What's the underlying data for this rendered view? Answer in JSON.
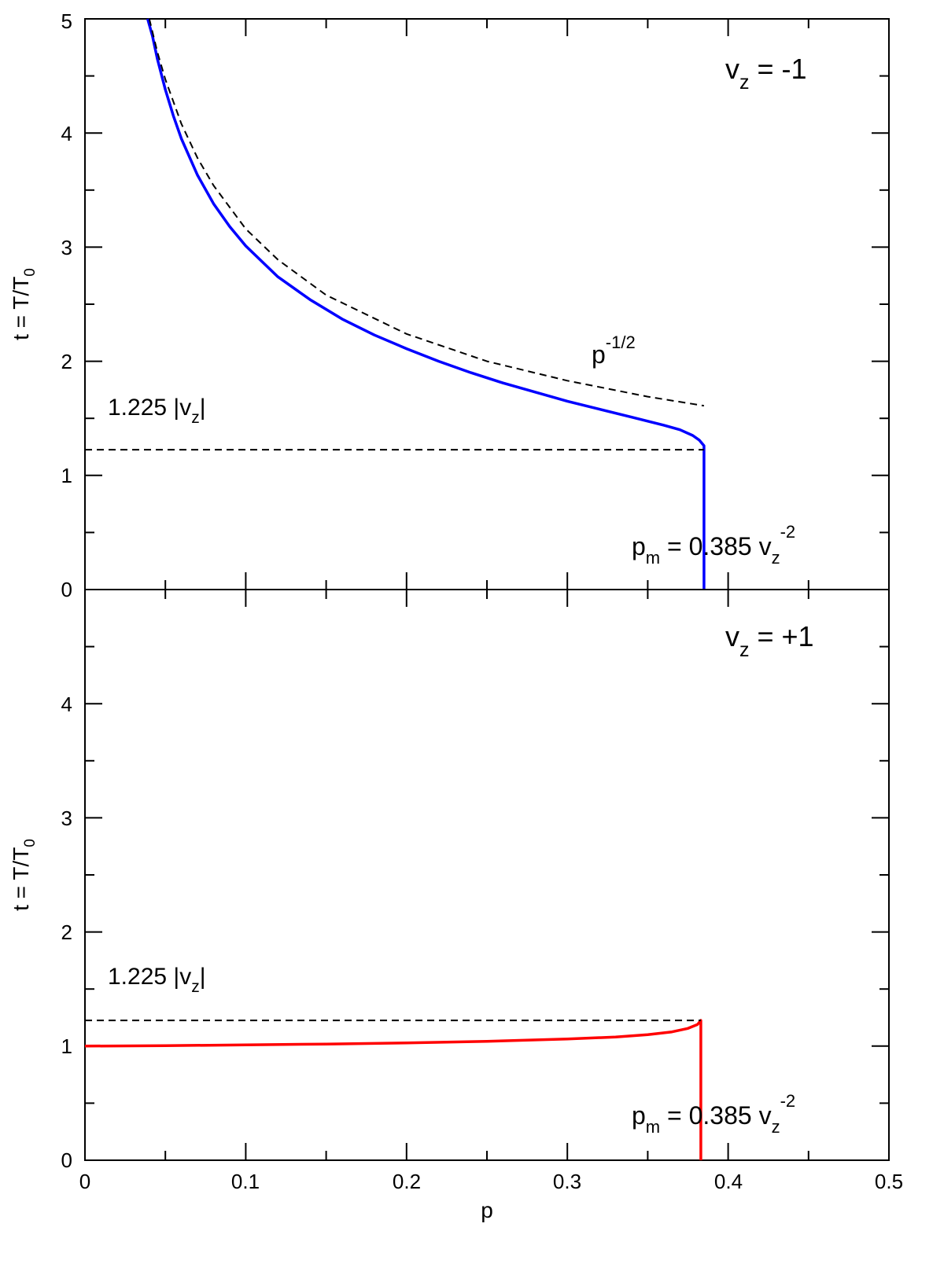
{
  "chart_data": [
    {
      "type": "line",
      "panel": "top",
      "xlim": [
        0,
        0.5
      ],
      "ylim": [
        0,
        5
      ],
      "x_ticks": [
        "0",
        "0.1",
        "0.2",
        "0.3",
        "0.4",
        "0.5"
      ],
      "y_ticks": [
        "0",
        "1",
        "2",
        "3",
        "4",
        "5"
      ],
      "xlabel": "",
      "ylabel": {
        "main": "t = T/T",
        "sub": "0"
      },
      "label": {
        "base": "v",
        "sub": "z",
        "rest": " = -1"
      },
      "series": [
        {
          "color": "#0000ff",
          "style": "solid",
          "points": [
            [
              0.039,
              5.0
            ],
            [
              0.042,
              4.85
            ],
            [
              0.045,
              4.65
            ],
            [
              0.05,
              4.38
            ],
            [
              0.055,
              4.15
            ],
            [
              0.06,
              3.95
            ],
            [
              0.07,
              3.63
            ],
            [
              0.08,
              3.38
            ],
            [
              0.09,
              3.18
            ],
            [
              0.1,
              3.01
            ],
            [
              0.12,
              2.74
            ],
            [
              0.14,
              2.54
            ],
            [
              0.16,
              2.37
            ],
            [
              0.18,
              2.23
            ],
            [
              0.2,
              2.11
            ],
            [
              0.22,
              2.0
            ],
            [
              0.24,
              1.9
            ],
            [
              0.26,
              1.81
            ],
            [
              0.28,
              1.73
            ],
            [
              0.3,
              1.65
            ],
            [
              0.32,
              1.58
            ],
            [
              0.34,
              1.51
            ],
            [
              0.36,
              1.44
            ],
            [
              0.37,
              1.4
            ],
            [
              0.378,
              1.35
            ],
            [
              0.382,
              1.31
            ],
            [
              0.385,
              1.26
            ],
            [
              0.385,
              0
            ]
          ]
        },
        {
          "color": "#000000",
          "style": "dashed",
          "points": [
            [
              0.04,
              5.0
            ],
            [
              0.045,
              4.71
            ],
            [
              0.05,
              4.47
            ],
            [
              0.06,
              4.08
            ],
            [
              0.07,
              3.78
            ],
            [
              0.08,
              3.54
            ],
            [
              0.1,
              3.16
            ],
            [
              0.12,
              2.89
            ],
            [
              0.15,
              2.58
            ],
            [
              0.2,
              2.24
            ],
            [
              0.25,
              2.0
            ],
            [
              0.3,
              1.83
            ],
            [
              0.35,
              1.69
            ],
            [
              0.385,
              1.61
            ]
          ]
        },
        {
          "color": "#000000",
          "style": "dashed",
          "points": [
            [
              0.0,
              1.225
            ],
            [
              0.385,
              1.225
            ]
          ]
        }
      ],
      "annotations": [
        {
          "base": "p",
          "sup": "-1/2"
        },
        {
          "text": "1.225 |v",
          "sub": "z",
          "tail": "|"
        },
        {
          "base": "p",
          "sub": "m",
          "mid": " = 0.385 v",
          "sub2": "z",
          "sup": "-2"
        }
      ]
    },
    {
      "type": "line",
      "panel": "bottom",
      "xlim": [
        0,
        0.5
      ],
      "ylim": [
        0,
        5
      ],
      "x_ticks": [
        "0",
        "0.1",
        "0.2",
        "0.3",
        "0.4",
        "0.5"
      ],
      "y_ticks": [
        "0",
        "1",
        "2",
        "3",
        "4"
      ],
      "xlabel": "p",
      "ylabel": {
        "main": "t = T/T",
        "sub": "0"
      },
      "label": {
        "base": "v",
        "sub": "z",
        "rest": " = +1"
      },
      "series": [
        {
          "color": "#ff0000",
          "style": "solid",
          "points": [
            [
              0.0,
              1.0
            ],
            [
              0.05,
              1.004
            ],
            [
              0.1,
              1.01
            ],
            [
              0.15,
              1.018
            ],
            [
              0.2,
              1.028
            ],
            [
              0.25,
              1.042
            ],
            [
              0.3,
              1.062
            ],
            [
              0.33,
              1.08
            ],
            [
              0.35,
              1.1
            ],
            [
              0.365,
              1.125
            ],
            [
              0.375,
              1.155
            ],
            [
              0.381,
              1.19
            ],
            [
              0.383,
              1.225
            ],
            [
              0.383,
              0
            ]
          ]
        },
        {
          "color": "#000000",
          "style": "dashed",
          "points": [
            [
              0.0,
              1.225
            ],
            [
              0.383,
              1.225
            ]
          ]
        }
      ],
      "annotations": [
        {
          "text": "1.225 |v",
          "sub": "z",
          "tail": "|"
        },
        {
          "base": "p",
          "sub": "m",
          "mid": " = 0.385 v",
          "sub2": "z",
          "sup": "-2"
        }
      ]
    }
  ]
}
